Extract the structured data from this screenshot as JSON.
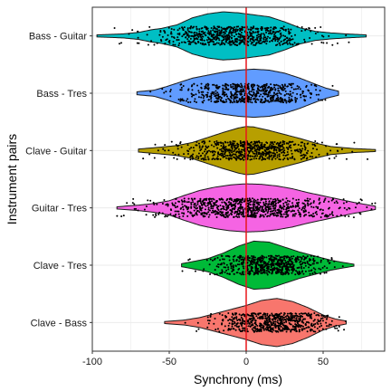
{
  "chart_data": {
    "type": "violin",
    "orientation": "horizontal",
    "xlabel": "Synchrony (ms)",
    "ylabel": "Instrument pairs",
    "xlim": [
      -100,
      90
    ],
    "xticks": [
      -100,
      -50,
      0,
      50
    ],
    "xtick_labels": [
      "-100",
      "-50",
      "0",
      "50"
    ],
    "grid": true,
    "legend": "none",
    "reference_line": {
      "x": 0,
      "color": "#e8161c"
    },
    "categories": [
      "Bass - Guitar",
      "Bass - Tres",
      "Clave - Guitar",
      "Guitar - Tres",
      "Clave - Tres",
      "Clave - Bass"
    ],
    "series": [
      {
        "category": "Bass - Guitar",
        "color": "#00bfc4",
        "min": -97,
        "max": 78,
        "density": [
          [
            -97,
            0.2
          ],
          [
            -80,
            0.4
          ],
          [
            -70,
            0.7
          ],
          [
            -62,
            1.2
          ],
          [
            -55,
            1.5
          ],
          [
            -45,
            2.2
          ],
          [
            -35,
            3.6
          ],
          [
            -25,
            4.4
          ],
          [
            -15,
            4.8
          ],
          [
            -5,
            4.6
          ],
          [
            5,
            4.2
          ],
          [
            15,
            3.8
          ],
          [
            25,
            2.8
          ],
          [
            35,
            1.6
          ],
          [
            45,
            0.9
          ],
          [
            55,
            0.6
          ],
          [
            65,
            0.4
          ],
          [
            78,
            0.2
          ]
        ],
        "points": {
          "count": 700,
          "center": -10,
          "sd": 25
        }
      },
      {
        "category": "Bass - Tres",
        "color": "#619cff",
        "min": -71,
        "max": 60,
        "density": [
          [
            -71,
            0.3
          ],
          [
            -60,
            0.6
          ],
          [
            -52,
            1.3
          ],
          [
            -45,
            2.0
          ],
          [
            -35,
            3.0
          ],
          [
            -25,
            3.6
          ],
          [
            -15,
            4.2
          ],
          [
            -5,
            4.6
          ],
          [
            5,
            4.8
          ],
          [
            15,
            4.6
          ],
          [
            25,
            4.0
          ],
          [
            35,
            3.0
          ],
          [
            45,
            1.8
          ],
          [
            52,
            1.0
          ],
          [
            60,
            0.4
          ]
        ],
        "points": {
          "count": 600,
          "center": 0,
          "sd": 22
        }
      },
      {
        "category": "Clave - Guitar",
        "color": "#b79f00",
        "min": -70,
        "max": 84,
        "density": [
          [
            -70,
            0.3
          ],
          [
            -55,
            0.7
          ],
          [
            -45,
            1.0
          ],
          [
            -35,
            1.6
          ],
          [
            -25,
            2.6
          ],
          [
            -15,
            3.6
          ],
          [
            -5,
            4.5
          ],
          [
            0,
            4.8
          ],
          [
            5,
            4.7
          ],
          [
            15,
            4.0
          ],
          [
            25,
            3.2
          ],
          [
            35,
            2.4
          ],
          [
            45,
            1.5
          ],
          [
            55,
            0.8
          ],
          [
            70,
            0.4
          ],
          [
            84,
            0.2
          ]
        ],
        "points": {
          "count": 650,
          "center": 2,
          "sd": 23
        }
      },
      {
        "category": "Guitar - Tres",
        "color": "#f564e3",
        "min": -84,
        "max": 84,
        "density": [
          [
            -84,
            0.2
          ],
          [
            -70,
            0.5
          ],
          [
            -60,
            0.8
          ],
          [
            -50,
            1.3
          ],
          [
            -40,
            2.3
          ],
          [
            -30,
            3.2
          ],
          [
            -20,
            3.8
          ],
          [
            -10,
            4.2
          ],
          [
            0,
            4.4
          ],
          [
            10,
            4.3
          ],
          [
            20,
            4.0
          ],
          [
            30,
            3.5
          ],
          [
            40,
            2.8
          ],
          [
            50,
            2.2
          ],
          [
            60,
            1.6
          ],
          [
            70,
            1.0
          ],
          [
            84,
            0.3
          ]
        ],
        "points": {
          "count": 850,
          "center": 0,
          "sd": 30
        }
      },
      {
        "category": "Clave - Tres",
        "color": "#00ba38",
        "min": -42,
        "max": 70,
        "density": [
          [
            -42,
            0.3
          ],
          [
            -35,
            0.7
          ],
          [
            -25,
            1.3
          ],
          [
            -15,
            2.4
          ],
          [
            -5,
            3.8
          ],
          [
            5,
            4.8
          ],
          [
            15,
            4.6
          ],
          [
            25,
            3.6
          ],
          [
            35,
            2.6
          ],
          [
            45,
            1.8
          ],
          [
            55,
            1.0
          ],
          [
            62,
            0.6
          ],
          [
            70,
            0.2
          ]
        ],
        "points": {
          "count": 650,
          "center": 15,
          "sd": 17
        }
      },
      {
        "category": "Clave - Bass",
        "color": "#f8766d",
        "min": -53,
        "max": 65,
        "density": [
          [
            -53,
            0.2
          ],
          [
            -40,
            0.5
          ],
          [
            -30,
            1.0
          ],
          [
            -20,
            1.8
          ],
          [
            -10,
            2.6
          ],
          [
            0,
            3.4
          ],
          [
            10,
            4.4
          ],
          [
            20,
            4.8
          ],
          [
            30,
            4.2
          ],
          [
            40,
            3.0
          ],
          [
            50,
            1.5
          ],
          [
            58,
            0.7
          ],
          [
            65,
            0.3
          ]
        ],
        "points": {
          "count": 650,
          "center": 18,
          "sd": 18
        }
      }
    ]
  }
}
